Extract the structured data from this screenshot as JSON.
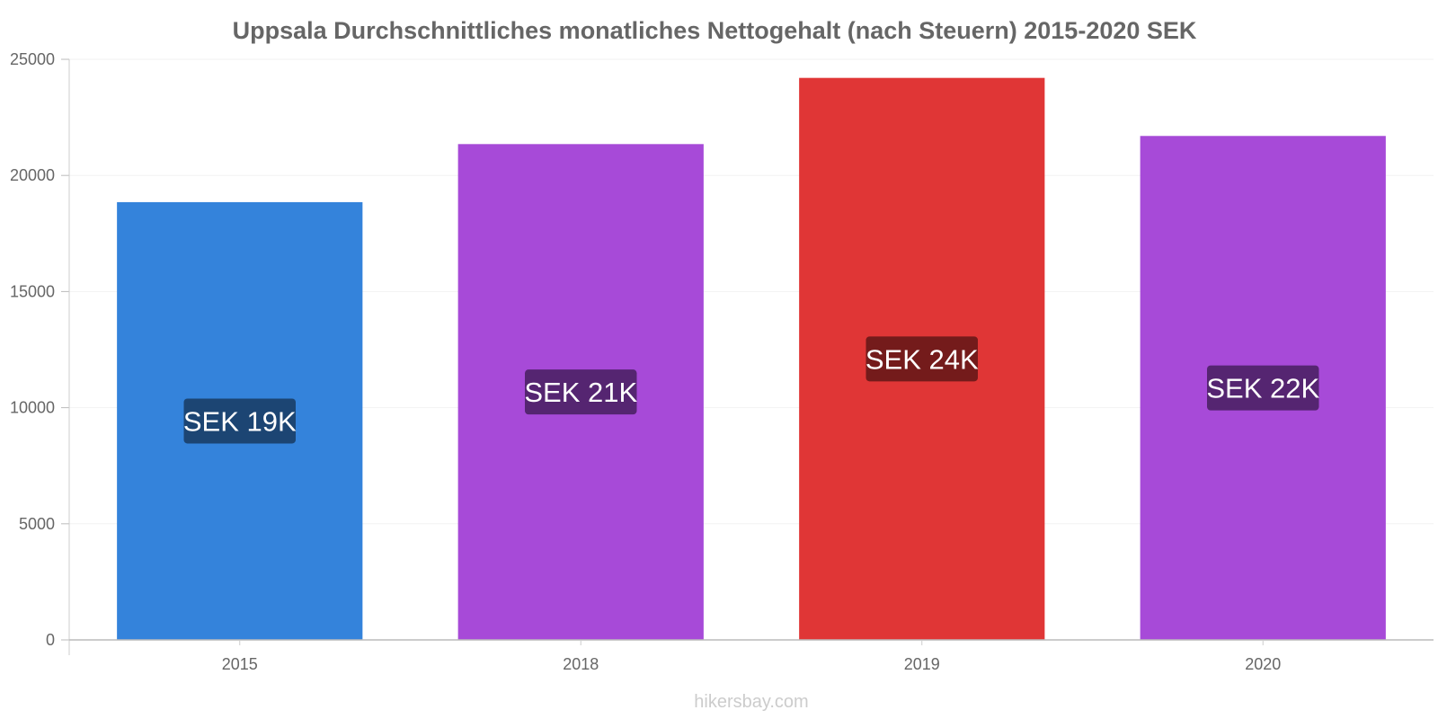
{
  "chart_data": {
    "type": "bar",
    "title": "Uppsala Durchschnittliches monatliches Nettogehalt (nach Steuern) 2015-2020 SEK",
    "categories": [
      "2015",
      "2018",
      "2019",
      "2020"
    ],
    "values": [
      18850,
      21350,
      24200,
      21700
    ],
    "data_labels": [
      "SEK 19K",
      "SEK 21K",
      "SEK 24K",
      "SEK 22K"
    ],
    "bar_colors": [
      "#3483db",
      "#a74ad8",
      "#e03636",
      "#a74ad8"
    ],
    "label_bg_colors": [
      "#1c4573",
      "#552571",
      "#741b1b",
      "#552571"
    ],
    "ylim": [
      0,
      25000
    ],
    "yticks": [
      "0",
      "5000",
      "10000",
      "15000",
      "20000",
      "25000"
    ],
    "xlabel": "",
    "ylabel": "",
    "grid": true
  },
  "footer": "hikersbay.com"
}
